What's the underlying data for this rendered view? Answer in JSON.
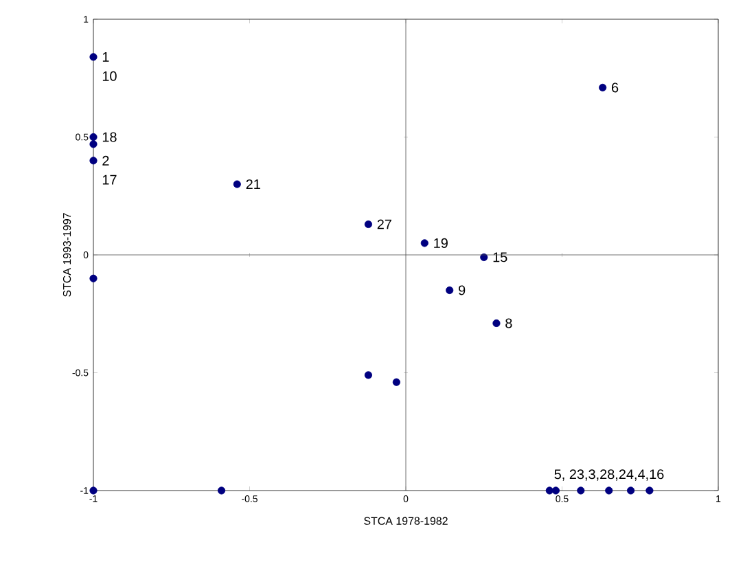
{
  "chart_data": {
    "type": "scatter",
    "xlabel": "STCA 1978-1982",
    "ylabel": "STCA 1993-1997",
    "xlim": [
      -1,
      1
    ],
    "ylim": [
      -1,
      1
    ],
    "xticks": [
      -1,
      -0.5,
      0,
      0.5,
      1
    ],
    "yticks": [
      -1,
      -0.5,
      0,
      0.5,
      1
    ],
    "marker": "circle",
    "series": [
      {
        "color": "#000080",
        "x": [
          -1,
          -1,
          -1,
          -1,
          -1,
          -0.54,
          -0.12,
          0.06,
          0.25,
          0.63,
          0.14,
          0.29,
          -0.12,
          -0.03,
          -1,
          -0.59,
          0.46,
          0.48,
          0.56,
          0.65,
          0.72,
          0.78
        ],
        "values": [
          0.84,
          0.5,
          0.47,
          0.4,
          -0.1,
          0.3,
          0.13,
          0.05,
          -0.01,
          0.71,
          -0.15,
          -0.29,
          -0.51,
          -0.54,
          -1,
          -1,
          -1,
          -1,
          -1,
          -1,
          -1,
          -1
        ]
      }
    ],
    "annotations": [
      {
        "text": "1",
        "x": -1,
        "y": 0.84
      },
      {
        "text": "10",
        "x": -1,
        "y": 0.84
      },
      {
        "text": "18",
        "x": -1,
        "y": 0.5
      },
      {
        "text": "2",
        "x": -1,
        "y": 0.4
      },
      {
        "text": "17",
        "x": -1,
        "y": 0.4
      },
      {
        "text": "21",
        "x": -0.54,
        "y": 0.3
      },
      {
        "text": "27",
        "x": -0.12,
        "y": 0.13
      },
      {
        "text": "19",
        "x": 0.06,
        "y": 0.05
      },
      {
        "text": "15",
        "x": 0.25,
        "y": -0.01
      },
      {
        "text": "6",
        "x": 0.63,
        "y": 0.71
      },
      {
        "text": "9",
        "x": 0.14,
        "y": -0.15
      },
      {
        "text": "8",
        "x": 0.29,
        "y": -0.29
      },
      {
        "text": "5, 23,3,28,24,4,16",
        "x": 0.46,
        "y": -1
      }
    ]
  }
}
